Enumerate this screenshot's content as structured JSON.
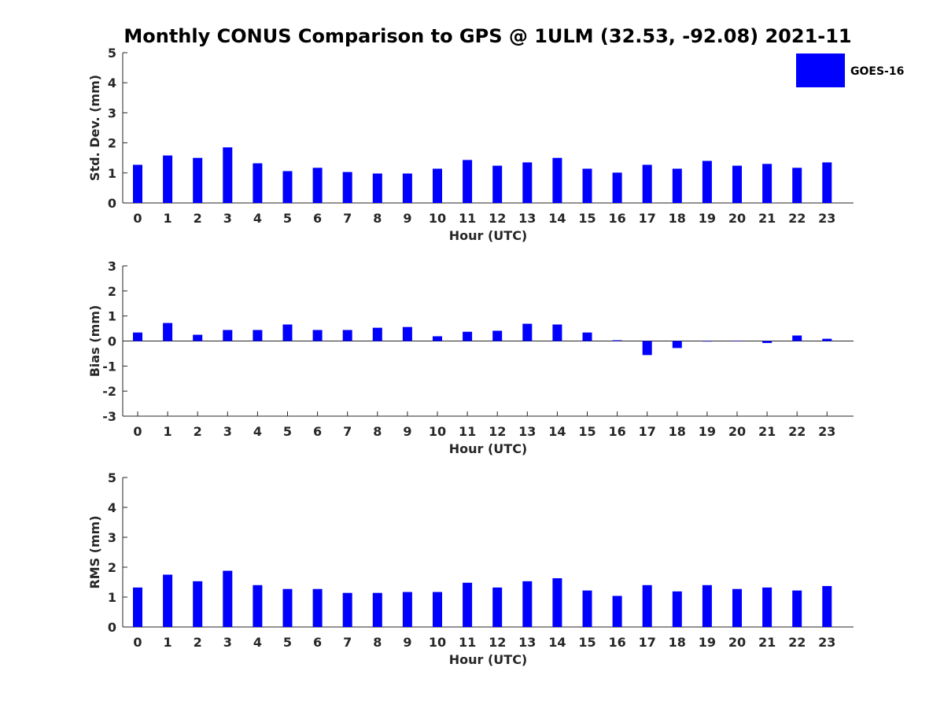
{
  "title": "Monthly CONUS Comparison to GPS @ 1ULM (32.53, -92.08) 2021-11",
  "legend": {
    "label": "GOES-16",
    "color": "#0000ff",
    "placement": "top-right"
  },
  "chart_data": [
    {
      "type": "bar",
      "xlabel": "Hour (UTC)",
      "ylabel": "Std. Dev. (mm)",
      "ylim": [
        0,
        5
      ],
      "yticks": [
        "0",
        "1",
        "2",
        "3",
        "4",
        "5"
      ],
      "categories": [
        "0",
        "1",
        "2",
        "3",
        "4",
        "5",
        "6",
        "7",
        "8",
        "9",
        "10",
        "11",
        "12",
        "13",
        "14",
        "15",
        "16",
        "17",
        "18",
        "19",
        "20",
        "21",
        "22",
        "23"
      ],
      "series": [
        {
          "name": "GOES-16",
          "color": "#0000ff",
          "values": [
            1.27,
            1.58,
            1.5,
            1.85,
            1.32,
            1.06,
            1.17,
            1.03,
            0.98,
            0.98,
            1.14,
            1.43,
            1.24,
            1.35,
            1.5,
            1.14,
            1.01,
            1.27,
            1.14,
            1.4,
            1.24,
            1.3,
            1.17,
            1.35
          ]
        }
      ],
      "grid": false
    },
    {
      "type": "bar",
      "xlabel": "Hour (UTC)",
      "ylabel": "Bias (mm)",
      "ylim": [
        -3,
        3
      ],
      "yticks": [
        "-3",
        "-2",
        "-1",
        "0",
        "1",
        "2",
        "3"
      ],
      "categories": [
        "0",
        "1",
        "2",
        "3",
        "4",
        "5",
        "6",
        "7",
        "8",
        "9",
        "10",
        "11",
        "12",
        "13",
        "14",
        "15",
        "16",
        "17",
        "18",
        "19",
        "20",
        "21",
        "22",
        "23"
      ],
      "series": [
        {
          "name": "GOES-16",
          "color": "#0000ff",
          "values": [
            0.34,
            0.72,
            0.25,
            0.44,
            0.44,
            0.66,
            0.44,
            0.44,
            0.53,
            0.56,
            0.19,
            0.37,
            0.41,
            0.69,
            0.66,
            0.34,
            0.03,
            -0.56,
            -0.28,
            -0.02,
            -0.01,
            -0.08,
            0.22,
            0.09
          ]
        }
      ],
      "grid": false
    },
    {
      "type": "bar",
      "xlabel": "Hour (UTC)",
      "ylabel": "RMS (mm)",
      "ylim": [
        0,
        5
      ],
      "yticks": [
        "0",
        "1",
        "2",
        "3",
        "4",
        "5"
      ],
      "categories": [
        "0",
        "1",
        "2",
        "3",
        "4",
        "5",
        "6",
        "7",
        "8",
        "9",
        "10",
        "11",
        "12",
        "13",
        "14",
        "15",
        "16",
        "17",
        "18",
        "19",
        "20",
        "21",
        "22",
        "23"
      ],
      "series": [
        {
          "name": "GOES-16",
          "color": "#0000ff",
          "values": [
            1.32,
            1.75,
            1.53,
            1.88,
            1.4,
            1.27,
            1.27,
            1.14,
            1.14,
            1.17,
            1.17,
            1.48,
            1.32,
            1.53,
            1.63,
            1.22,
            1.04,
            1.4,
            1.19,
            1.4,
            1.27,
            1.32,
            1.22,
            1.37
          ]
        }
      ],
      "grid": false
    }
  ]
}
